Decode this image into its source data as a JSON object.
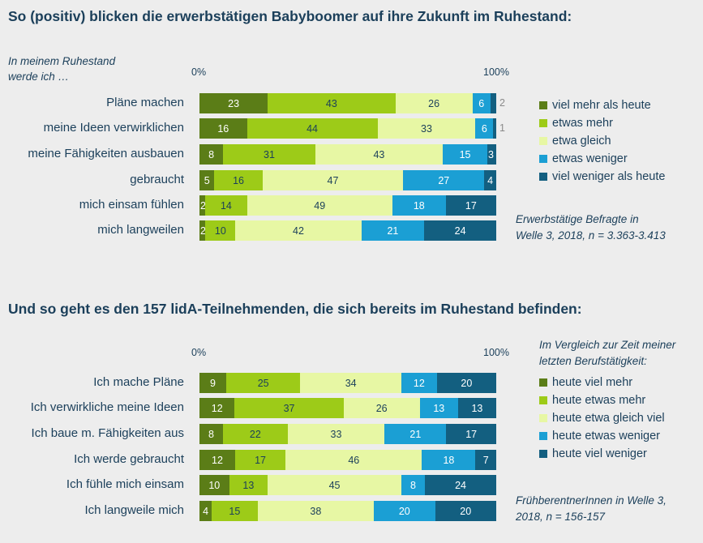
{
  "colors": {
    "c1": "#5b7d17",
    "c2": "#9dcb18",
    "c3": "#e7f7a4",
    "c4": "#1b9fd4",
    "c5": "#135f80",
    "text_light": "#ffffff",
    "text_dark": "#1b3f5a"
  },
  "chart_data": [
    {
      "type": "bar",
      "orientation": "horizontal-stacked-100",
      "title": "So (positiv) blicken die erwerbstätigen Babyboomer auf ihre Zukunft im Ruhestand:",
      "category_prefix": "In meinem Ruhestand werde ich …",
      "axis_ticks": [
        "0%",
        "100%"
      ],
      "categories": [
        "Pläne machen",
        "meine Ideen verwirklichen",
        "meine Fähigkeiten ausbauen",
        "gebraucht",
        "mich einsam fühlen",
        "mich langweilen"
      ],
      "series": [
        {
          "name": "viel mehr als heute",
          "values": [
            23,
            16,
            8,
            5,
            2,
            2
          ]
        },
        {
          "name": "etwas mehr",
          "values": [
            43,
            44,
            31,
            16,
            14,
            10
          ]
        },
        {
          "name": "etwa gleich",
          "values": [
            26,
            33,
            43,
            47,
            49,
            42
          ]
        },
        {
          "name": "etwas weniger",
          "values": [
            6,
            6,
            15,
            27,
            18,
            21
          ]
        },
        {
          "name": "viel weniger als heute",
          "values": [
            2,
            1,
            3,
            4,
            17,
            24
          ]
        }
      ],
      "note": [
        "Erwerbstätige Befragte in",
        "Welle 3, 2018, n = 3.363-3.413"
      ],
      "legend_placement": "right"
    },
    {
      "type": "bar",
      "orientation": "horizontal-stacked-100",
      "title": "Und so geht es den 157 lidA-Teilnehmenden, die sich bereits im Ruhestand befinden:",
      "axis_ticks": [
        "0%",
        "100%"
      ],
      "legend_title": [
        "Im Vergleich zur Zeit meiner",
        "letzten Berufstätigkeit:"
      ],
      "categories": [
        "Ich mache Pläne",
        "Ich verwirkliche meine Ideen",
        "Ich baue m. Fähigkeiten aus",
        "Ich werde gebraucht",
        "Ich fühle mich einsam",
        "Ich langweile mich"
      ],
      "series": [
        {
          "name": "heute viel mehr",
          "values": [
            9,
            12,
            8,
            12,
            10,
            4
          ]
        },
        {
          "name": "heute etwas mehr",
          "values": [
            25,
            37,
            22,
            17,
            13,
            15
          ]
        },
        {
          "name": "heute etwa gleich viel",
          "values": [
            34,
            26,
            33,
            46,
            45,
            38
          ]
        },
        {
          "name": "heute etwas weniger",
          "values": [
            12,
            13,
            21,
            18,
            8,
            20
          ]
        },
        {
          "name": "heute viel weniger",
          "values": [
            20,
            13,
            17,
            7,
            24,
            20
          ]
        }
      ],
      "note": [
        "FrühberentnerInnen in Welle 3,",
        "2018, n = 156-157"
      ],
      "legend_placement": "right"
    }
  ]
}
